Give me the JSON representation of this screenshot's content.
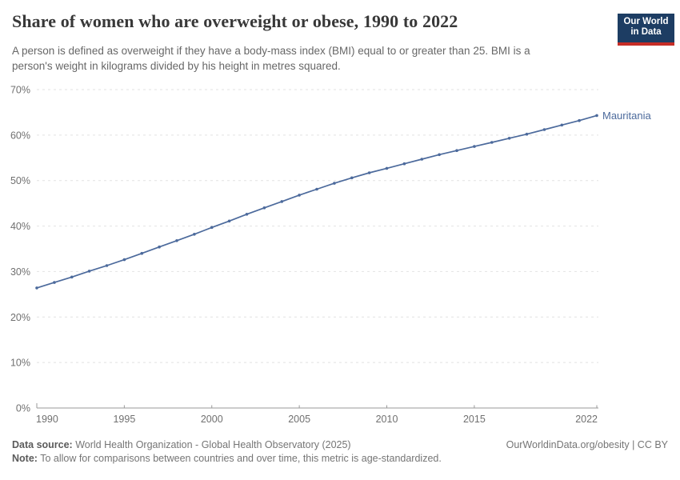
{
  "header": {
    "title": "Share of women who are overweight or obese, 1990 to 2022",
    "subtitle_lines": [
      "A person is defined as overweight if they have a body-mass index (BMI) equal to or greater than 25. BMI is a",
      "person's weight in kilograms divided by his height in metres squared."
    ],
    "logo": {
      "line1": "Our World",
      "line2": "in Data",
      "bg_color": "#1d3d63",
      "bar_color": "#c62d26"
    }
  },
  "chart_data": {
    "type": "line",
    "title": "Share of women who are overweight or obese, 1990 to 2022",
    "xlabel": "",
    "ylabel": "",
    "xlim": [
      1990,
      2022
    ],
    "ylim": [
      0,
      70
    ],
    "grid": "horizontal-dashed",
    "legend_position": "end-of-line-label",
    "x_tick_labels": [
      "1990",
      "1995",
      "2000",
      "2005",
      "2010",
      "2015",
      "2022"
    ],
    "y_tick_labels": [
      "0%",
      "10%",
      "20%",
      "30%",
      "40%",
      "50%",
      "60%",
      "70%"
    ],
    "y_tick_values": [
      0,
      10,
      20,
      30,
      40,
      50,
      60,
      70
    ],
    "x": [
      1990,
      1991,
      1992,
      1993,
      1994,
      1995,
      1996,
      1997,
      1998,
      1999,
      2000,
      2001,
      2002,
      2003,
      2004,
      2005,
      2006,
      2007,
      2008,
      2009,
      2010,
      2011,
      2012,
      2013,
      2014,
      2015,
      2016,
      2017,
      2018,
      2019,
      2020,
      2021,
      2022
    ],
    "series": [
      {
        "name": "Mauritania",
        "color": "#4c6a9c",
        "values": [
          26.4,
          27.6,
          28.8,
          30.1,
          31.3,
          32.6,
          34.0,
          35.4,
          36.8,
          38.2,
          39.7,
          41.1,
          42.6,
          44.0,
          45.4,
          46.8,
          48.1,
          49.4,
          50.6,
          51.7,
          52.7,
          53.7,
          54.7,
          55.7,
          56.6,
          57.5,
          58.4,
          59.3,
          60.2,
          61.2,
          62.2,
          63.2,
          64.3
        ]
      }
    ],
    "colors": {
      "gridline": "#e2e2e2",
      "axis_line": "#999999",
      "tick_text": "#707070"
    }
  },
  "footer": {
    "data_source_label": "Data source:",
    "data_source_text": "World Health Organization - Global Health Observatory (2025)",
    "note_label": "Note:",
    "note_text": "To allow for comparisons between countries and over time, this metric is age-standardized.",
    "link_text": "OurWorldinData.org/obesity | CC BY"
  }
}
